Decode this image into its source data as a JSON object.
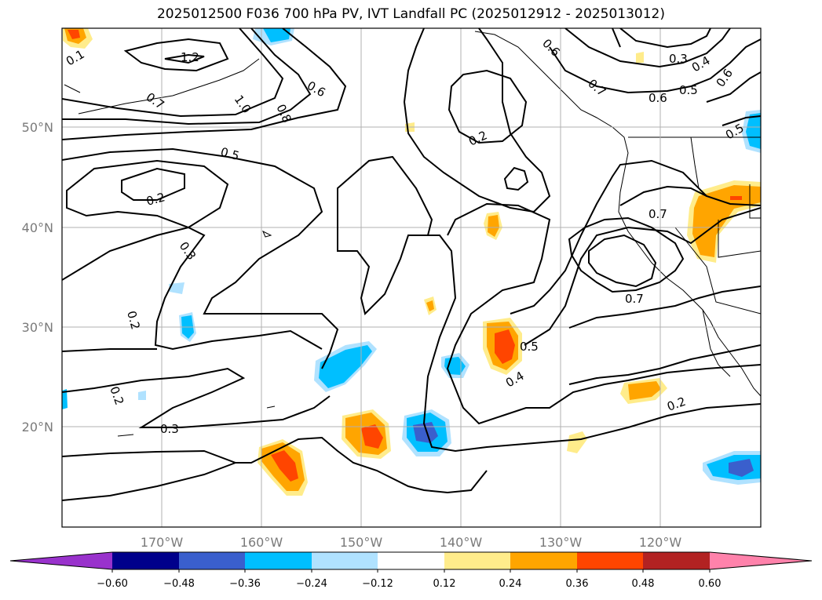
{
  "title": "2025012500 F036 700 hPa PV, IVT Landfall PC (2025012912 - 2025013012)",
  "lat_labels": [
    "50°N",
    "40°N",
    "30°N",
    "20°N"
  ],
  "lon_labels": [
    "170°W",
    "160°W",
    "150°W",
    "140°W",
    "130°W",
    "120°W"
  ],
  "contour_labels": [
    "1.2",
    "1.0",
    "0.8",
    "0.7",
    "0.6",
    "0.5",
    "0.2",
    "0.3",
    "0.2",
    "0.2",
    "0.3",
    "0.2",
    "0.5",
    "0.4",
    "0.7",
    "0.7",
    "0.6",
    "0.7",
    "0.3",
    "0.4",
    "0.5",
    "0.6",
    "0.5",
    "0.2",
    "0.6",
    "0.1"
  ],
  "colorbar": {
    "ticks": [
      "−0.60",
      "−0.48",
      "−0.36",
      "−0.24",
      "−0.12",
      "0.12",
      "0.24",
      "0.36",
      "0.48",
      "0.60"
    ],
    "colors": [
      "#9932cc",
      "#00008b",
      "#3a5fcd",
      "#00bfff",
      "#b0e2ff",
      "#ffffff",
      "#ffec8b",
      "#ffa500",
      "#ff4500",
      "#b22222",
      "#ff82ab"
    ]
  }
}
